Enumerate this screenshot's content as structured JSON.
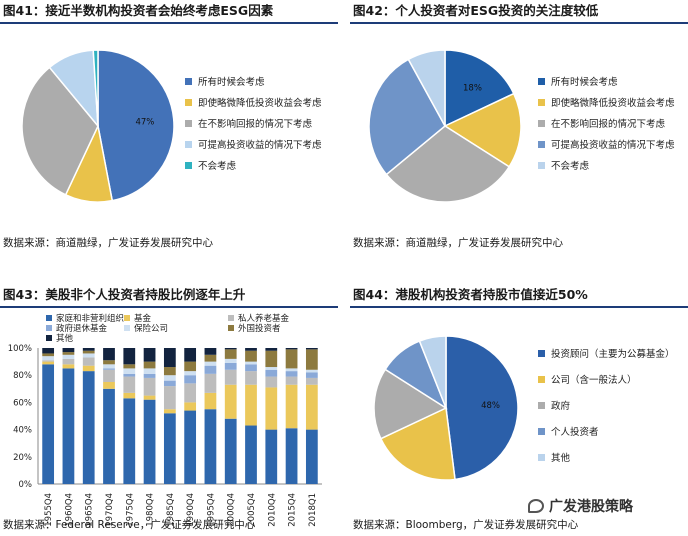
{
  "charts": [
    {
      "title": "图41：接近半数机构投资者会始终考虑ESG因素",
      "source": "数据来源：商道融绿，广发证券发展研究中心",
      "chart_data": {
        "type": "pie",
        "labels": [
          "所有时候会考虑",
          "即使略微降低投资收益会考虑",
          "在不影响回报的情况下考虑",
          "可提高投资收益的情况下考虑",
          "不会考虑"
        ],
        "values": [
          47,
          10,
          32,
          10,
          1
        ],
        "data_labels": [
          "47%",
          "",
          "",
          "",
          ""
        ],
        "colors": [
          "#4372b8",
          "#e9c24a",
          "#acacac",
          "#b8d4ee",
          "#2fb2c0"
        ],
        "legend_position": "right"
      }
    },
    {
      "title": "图42：个人投资者对ESG投资的关注度较低",
      "source": "数据来源：商道融绿，广发证券发展研究中心",
      "chart_data": {
        "type": "pie",
        "labels": [
          "所有时候会考虑",
          "即使略微降低投资收益会考虑",
          "在不影响回报的情况下考虑",
          "可提高投资收益的情况下考虑",
          "不会考虑"
        ],
        "values": [
          18,
          16,
          30,
          28,
          8
        ],
        "data_labels": [
          "18%",
          "",
          "",
          "",
          ""
        ],
        "colors": [
          "#1f5ea8",
          "#e9c24a",
          "#acacac",
          "#6f94c8",
          "#bad3ec"
        ],
        "legend_position": "right"
      }
    },
    {
      "title": "图43：美股非个人投资者持股比例逐年上升",
      "source": "数据来源：Federal Reserve，广发证券发展研究中心",
      "chart_data": {
        "type": "bar",
        "stacked": true,
        "categories": [
          "1955Q4",
          "1960Q4",
          "1965Q4",
          "1970Q4",
          "1975Q4",
          "1980Q4",
          "1985Q4",
          "1990Q4",
          "1995Q4",
          "2000Q4",
          "2005Q4",
          "2010Q4",
          "2015Q4",
          "2018Q1"
        ],
        "series": [
          {
            "name": "家庭和非营利组织",
            "color": "#2e67ad",
            "values": [
              88,
              85,
              83,
              70,
              63,
              62,
              52,
              54,
              55,
              48,
              43,
              40,
              41,
              40
            ]
          },
          {
            "name": "基金",
            "color": "#ebc85b",
            "values": [
              2,
              3,
              4,
              5,
              4,
              3,
              3,
              6,
              12,
              25,
              30,
              31,
              32,
              33
            ]
          },
          {
            "name": "私人养老基金",
            "color": "#bdbdbd",
            "values": [
              1,
              4,
              6,
              9,
              12,
              13,
              17,
              14,
              14,
              11,
              10,
              8,
              6,
              5
            ]
          },
          {
            "name": "政府退休基金",
            "color": "#8aa9d8",
            "values": [
              0,
              0,
              0,
              1,
              2,
              3,
              4,
              6,
              6,
              5,
              5,
              5,
              4,
              4
            ]
          },
          {
            "name": "保险公司",
            "color": "#cfe0f1",
            "values": [
              3,
              3,
              3,
              3,
              4,
              4,
              4,
              3,
              3,
              3,
              2,
              2,
              2,
              2
            ]
          },
          {
            "name": "外国投资者",
            "color": "#8d7a3f",
            "values": [
              2,
              2,
              2,
              3,
              3,
              5,
              6,
              7,
              5,
              7,
              8,
              12,
              14,
              15
            ]
          },
          {
            "name": "其他",
            "color": "#12233f",
            "values": [
              4,
              3,
              2,
              9,
              12,
              10,
              14,
              10,
              5,
              1,
              2,
              2,
              1,
              1
            ]
          }
        ],
        "y_ticks": [
          "0%",
          "20%",
          "40%",
          "60%",
          "80%",
          "100%"
        ],
        "ylim": [
          0,
          100
        ],
        "legend_position": "top"
      }
    },
    {
      "title": "图44：港股机构投资者持股市值接近50%",
      "source": "数据来源：Bloomberg，广发证券发展研究中心",
      "chart_data": {
        "type": "pie",
        "labels": [
          "投资顾问（主要为公募基金）",
          "公司（含一般法人）",
          "政府",
          "个人投资者",
          "其他"
        ],
        "values": [
          48,
          20,
          16,
          10,
          6
        ],
        "data_labels": [
          "48%",
          "",
          "",
          "",
          ""
        ],
        "colors": [
          "#2b5fa9",
          "#e9c24a",
          "#acacac",
          "#6f94c8",
          "#bad3ec"
        ],
        "legend_position": "right"
      }
    }
  ],
  "watermark": "广发港股策略"
}
